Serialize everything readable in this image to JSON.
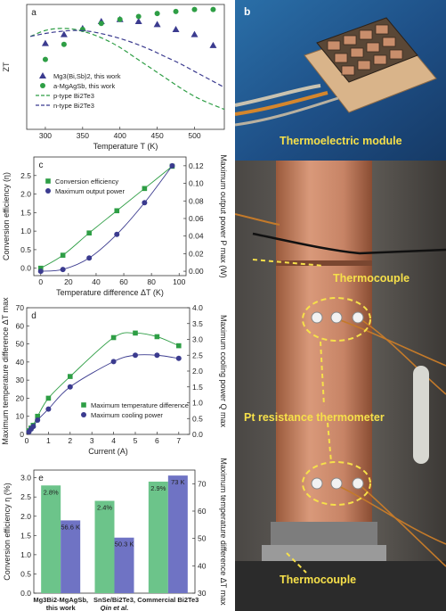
{
  "colors": {
    "green": "#2e9e45",
    "navy": "#3b3b8f",
    "bar_green": "#6cc48a",
    "bar_blue": "#6f73c4",
    "callout_yellow": "#f6e04a"
  },
  "chart_data": [
    {
      "id": "a",
      "type": "scatter",
      "panel_label": "a",
      "xlabel": "Temperature T (K)",
      "ylabel": "ZT",
      "xlim": [
        275,
        540
      ],
      "ylim": [
        0,
        1.25
      ],
      "xticks": [
        300,
        350,
        400,
        450,
        500
      ],
      "yticks": [],
      "series": [
        {
          "name": "Mg3(Bi,Sb)2, this work",
          "kind": "scatter",
          "marker": "triangle",
          "color": "#3b3b8f",
          "x": [
            300,
            325,
            350,
            375,
            400,
            425,
            450,
            475,
            500,
            525
          ],
          "y": [
            0.86,
            0.95,
            1.01,
            1.08,
            1.1,
            1.08,
            1.05,
            1.0,
            0.95,
            0.84
          ]
        },
        {
          "name": "a-MgAgSb, this work",
          "kind": "scatter",
          "marker": "circle",
          "color": "#2e9e45",
          "x": [
            300,
            325,
            350,
            375,
            400,
            425,
            450,
            475,
            500,
            525
          ],
          "y": [
            0.7,
            0.85,
            1.0,
            1.06,
            1.1,
            1.13,
            1.16,
            1.18,
            1.2,
            1.2
          ]
        },
        {
          "name": "p-type Bi2Te3",
          "kind": "line",
          "dashed": true,
          "color": "#2e9e45",
          "x": [
            280,
            300,
            320,
            340,
            360,
            380,
            400,
            420,
            440,
            460,
            480,
            500,
            520,
            540
          ],
          "y": [
            0.93,
            0.99,
            1.01,
            1.0,
            0.96,
            0.9,
            0.82,
            0.72,
            0.62,
            0.52,
            0.42,
            0.33,
            0.26,
            0.2
          ]
        },
        {
          "name": "n-type Bi2Te3",
          "kind": "line",
          "dashed": true,
          "color": "#3b3b8f",
          "x": [
            280,
            300,
            320,
            340,
            360,
            380,
            400,
            420,
            440,
            460,
            480,
            500,
            520,
            540
          ],
          "y": [
            0.93,
            0.96,
            0.98,
            0.99,
            0.98,
            0.95,
            0.91,
            0.86,
            0.8,
            0.73,
            0.66,
            0.58,
            0.5,
            0.42
          ]
        }
      ],
      "legend": "lower-left"
    },
    {
      "id": "c",
      "type": "line",
      "panel_label": "c",
      "xlabel": "Temperature difference ΔT (K)",
      "ylabel": "Conversion efficiency (η)",
      "y2label": "Maximum output power P max (W)",
      "xlim": [
        -5,
        105
      ],
      "ylim": [
        -0.2,
        3.0
      ],
      "y2lim": [
        -0.005,
        0.13
      ],
      "xticks": [
        0,
        20,
        40,
        60,
        80,
        100
      ],
      "yticks": [
        0.0,
        0.5,
        1.0,
        1.5,
        2.0,
        2.5
      ],
      "y2ticks": [
        0.0,
        0.02,
        0.04,
        0.06,
        0.08,
        0.1,
        0.12
      ],
      "series": [
        {
          "name": "Conversion efficiency",
          "axis": "left",
          "marker": "square",
          "color": "#2e9e45",
          "x": [
            0,
            16,
            35,
            55,
            75,
            95
          ],
          "y": [
            0.0,
            0.35,
            0.95,
            1.55,
            2.15,
            2.75
          ]
        },
        {
          "name": "Maximum output power",
          "axis": "right",
          "marker": "circle",
          "color": "#3b3b8f",
          "x": [
            0,
            16,
            35,
            55,
            75,
            95
          ],
          "y": [
            0.0,
            0.002,
            0.015,
            0.042,
            0.078,
            0.12
          ]
        }
      ],
      "legend": "top-left"
    },
    {
      "id": "d",
      "type": "line",
      "panel_label": "d",
      "xlabel": "Current (A)",
      "ylabel": "Maximum temperature difference ΔT max",
      "y2label": "Maximum cooling power Q max",
      "xlim": [
        0,
        7.5
      ],
      "ylim": [
        0,
        70
      ],
      "y2lim": [
        0,
        4.0
      ],
      "xticks": [
        0,
        1,
        2,
        3,
        4,
        5,
        6,
        7
      ],
      "yticks": [
        0,
        10,
        20,
        30,
        40,
        50,
        60,
        70
      ],
      "y2ticks": [
        0.0,
        0.5,
        1.0,
        1.5,
        2.0,
        2.5,
        3.0,
        3.5,
        4.0
      ],
      "series": [
        {
          "name": "Maximum temperature difference",
          "axis": "left",
          "marker": "square",
          "color": "#2e9e45",
          "x": [
            0.1,
            0.2,
            0.3,
            0.5,
            1.0,
            2.0,
            4.0,
            5.0,
            6.0,
            7.0
          ],
          "y": [
            2,
            3.5,
            5,
            10,
            20,
            32,
            53.5,
            56,
            54,
            49
          ]
        },
        {
          "name": "Maximum cooling power",
          "axis": "right",
          "marker": "circle",
          "color": "#3b3b8f",
          "x": [
            0.1,
            0.2,
            0.3,
            0.5,
            1.0,
            2.0,
            4.0,
            5.0,
            6.0,
            7.0
          ],
          "y": [
            0.08,
            0.17,
            0.25,
            0.45,
            0.8,
            1.5,
            2.3,
            2.5,
            2.5,
            2.4
          ]
        }
      ],
      "legend": "bottom-right"
    },
    {
      "id": "e",
      "type": "bar",
      "panel_label": "e",
      "ylabel": "Conversion efficiency η (%)",
      "y2label": "Maximum temperature difference ΔT max",
      "ylim": [
        0,
        3.2
      ],
      "y2lim": [
        30,
        75
      ],
      "yticks": [
        0.0,
        0.5,
        1.0,
        1.5,
        2.0,
        2.5,
        3.0
      ],
      "y2ticks": [
        30,
        40,
        50,
        60,
        70
      ],
      "categories": [
        "Mg3Bi2-MgAgSb, this work",
        "SnSe/Bi2Te3, Qin et al.",
        "Commercial Bi2Te3"
      ],
      "category_line1": [
        "Mg3Bi2-MgAgSb,",
        "SnSe/Bi2Te3,",
        "Commercial Bi2Te3"
      ],
      "category_line2": [
        "this work",
        "Qin et al.",
        ""
      ],
      "series": [
        {
          "name": "Conversion efficiency",
          "axis": "left",
          "color": "#6cc48a",
          "values": [
            2.8,
            2.4,
            2.9
          ],
          "labels": [
            "2.8%",
            "2.4%",
            "2.9%"
          ]
        },
        {
          "name": "Maximum temperature difference",
          "axis": "right",
          "color": "#6f73c4",
          "values": [
            56.6,
            50.3,
            73
          ],
          "labels": [
            "56.6 K",
            "50.3 K",
            "73 K"
          ]
        }
      ]
    }
  ],
  "photo": {
    "panel_b_label": "b",
    "module_caption": "Thermoelectric module",
    "thermocouple_top": "Thermocouple",
    "pt_thermometer": "Pt resistance thermometer",
    "thermocouple_bottom": "Thermocouple"
  }
}
